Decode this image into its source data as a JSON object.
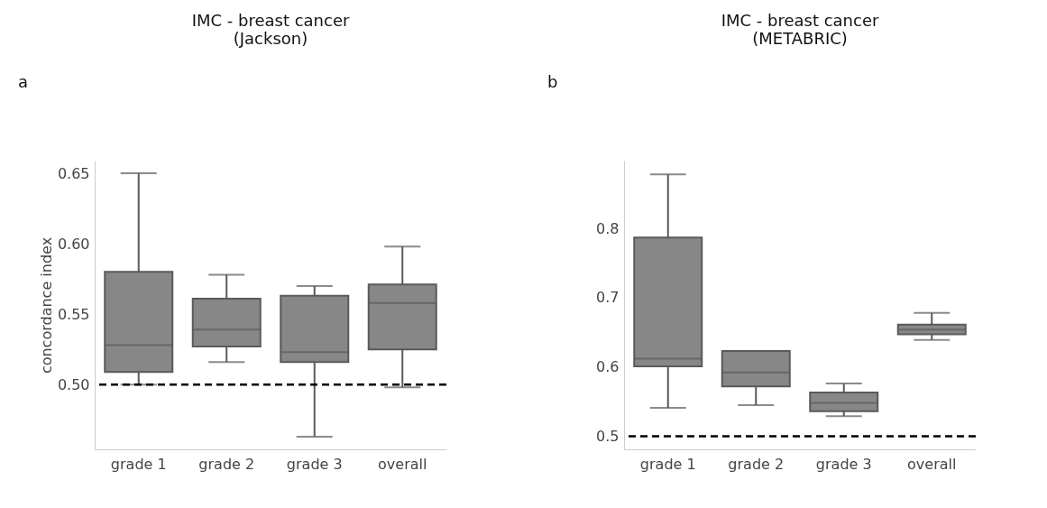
{
  "chart_data": [
    {
      "type": "box",
      "title": "IMC - breast cancer\n(Jackson)",
      "ylabel": "concordance index",
      "annotations": [
        "a"
      ],
      "categories": [
        "grade 1",
        "grade 2",
        "grade 3",
        "overall"
      ],
      "color": "#878787",
      "boxes": [
        {
          "low": 0.5,
          "q1": 0.509,
          "median": 0.528,
          "q3": 0.58,
          "high": 0.65
        },
        {
          "low": 0.516,
          "q1": 0.527,
          "median": 0.539,
          "q3": 0.561,
          "high": 0.578
        },
        {
          "low": 0.463,
          "q1": 0.516,
          "median": 0.523,
          "q3": 0.563,
          "high": 0.57
        },
        {
          "low": 0.498,
          "q1": 0.525,
          "median": 0.558,
          "q3": 0.571,
          "high": 0.598
        }
      ],
      "ylim": [
        0.454,
        0.659
      ],
      "yticks": [
        {
          "value": 0.5,
          "label": "0.50"
        },
        {
          "value": 0.55,
          "label": "0.55"
        },
        {
          "value": 0.6,
          "label": "0.60"
        },
        {
          "value": 0.65,
          "label": "0.65"
        }
      ],
      "ref_lines": [
        {
          "axis": "y",
          "value": 0.5,
          "color": "#000000",
          "line_style": "dashed"
        }
      ],
      "grid": false
    },
    {
      "type": "box",
      "title": "IMC - breast cancer\n(METABRIC)",
      "annotations": [
        "b"
      ],
      "categories": [
        "grade 1",
        "grade 2",
        "grade 3",
        "overall"
      ],
      "color": "#878787",
      "boxes": [
        {
          "low": 0.541,
          "q1": 0.601,
          "median": 0.612,
          "q3": 0.787,
          "high": 0.878
        },
        {
          "low": 0.545,
          "q1": 0.572,
          "median": 0.592,
          "q3": 0.623,
          "high": 0.623
        },
        {
          "low": 0.529,
          "q1": 0.536,
          "median": 0.548,
          "q3": 0.563,
          "high": 0.576
        },
        {
          "low": 0.639,
          "q1": 0.647,
          "median": 0.654,
          "q3": 0.661,
          "high": 0.678
        }
      ],
      "ylim": [
        0.481,
        0.898
      ],
      "yticks": [
        0.5,
        0.6,
        0.7,
        0.8
      ],
      "ref_lines": [
        {
          "axis": "y",
          "value": 0.5,
          "color": "#000000",
          "line_style": "dashed"
        }
      ],
      "grid": false
    }
  ]
}
